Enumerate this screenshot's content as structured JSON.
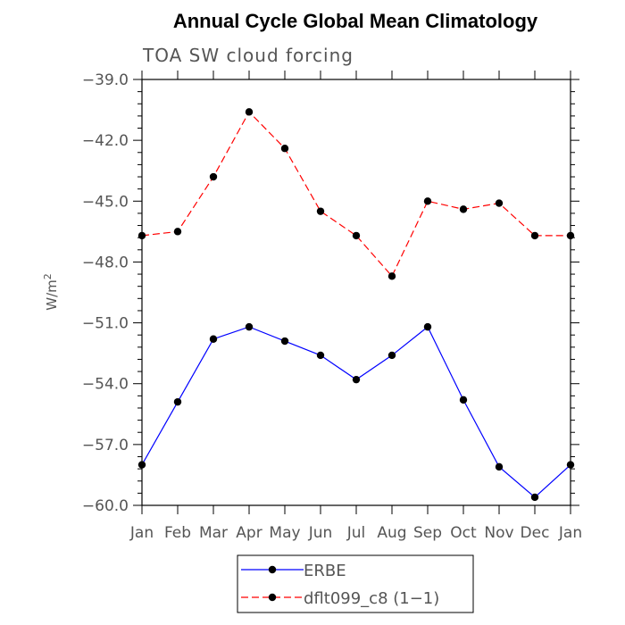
{
  "chart_data": {
    "type": "line",
    "title": "Annual Cycle Global Mean Climatology",
    "subtitle": "TOA SW cloud forcing",
    "ylabel": "W/m",
    "ylabel_sup": "2",
    "categories": [
      "Jan",
      "Feb",
      "Mar",
      "Apr",
      "May",
      "Jun",
      "Jul",
      "Aug",
      "Sep",
      "Oct",
      "Nov",
      "Dec",
      "Jan"
    ],
    "ylim": [
      -60.0,
      -39.0
    ],
    "yticks": [
      -39.0,
      -42.0,
      -45.0,
      -48.0,
      -51.0,
      -54.0,
      -57.0,
      -60.0
    ],
    "ytick_labels": [
      "−39.0",
      "−42.0",
      "−45.0",
      "−48.0",
      "−51.0",
      "−54.0",
      "−57.0",
      "−60.0"
    ],
    "grid": false,
    "legend_position": "bottom",
    "series": [
      {
        "name": "ERBE",
        "color": "#0000ff",
        "dash": "solid",
        "values": [
          -58.0,
          -54.9,
          -51.8,
          -51.2,
          -51.9,
          -52.6,
          -53.8,
          -52.6,
          -51.2,
          -54.8,
          -58.1,
          -59.6,
          -58.0
        ]
      },
      {
        "name": "dflt099_c8 (1−1)",
        "color": "#ff0000",
        "dash": "dashed",
        "values": [
          -46.7,
          -46.5,
          -43.8,
          -40.6,
          -42.4,
          -45.5,
          -46.7,
          -48.7,
          -45.0,
          -45.4,
          -45.1,
          -46.7,
          -46.7
        ]
      }
    ]
  }
}
